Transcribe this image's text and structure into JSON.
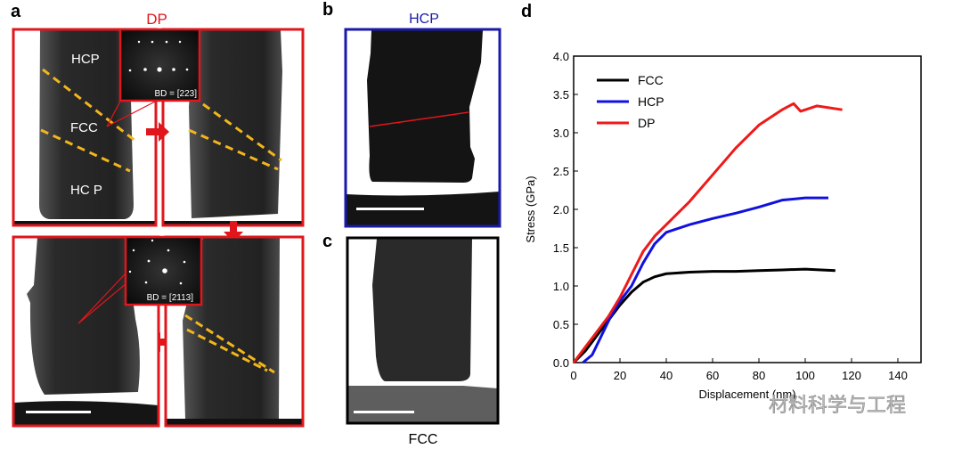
{
  "panel_a": {
    "letter": "a",
    "title": "DP",
    "labels": {
      "hcp_top": "HCP",
      "fcc": "FCC",
      "hcp_bottom": "HC P"
    },
    "inset_top_caption": "BD = [223]",
    "inset_bottom_caption": "BD = [2113]",
    "frame_color": "#e0161c",
    "twin_line_color": "#f2b61c"
  },
  "panel_b": {
    "letter": "b",
    "title": "HCP",
    "frame_color": "#1a1aa8"
  },
  "panel_c": {
    "letter": "c",
    "caption": "FCC",
    "frame_color": "#000000"
  },
  "panel_d": {
    "letter": "d"
  },
  "watermark": "材料科学与工程",
  "chart_data": {
    "type": "line",
    "title": "",
    "xlabel": "Displacement (nm)",
    "ylabel": "Stress (GPa)",
    "xlim": [
      0,
      150
    ],
    "ylim": [
      0,
      4.0
    ],
    "xticks": [
      0,
      20,
      40,
      60,
      80,
      100,
      120,
      140
    ],
    "yticks": [
      "0.0",
      "0.5",
      "1.0",
      "1.5",
      "2.0",
      "2.5",
      "3.0",
      "3.5",
      "4.0"
    ],
    "grid": false,
    "legend_position": "top-left",
    "series": [
      {
        "name": "FCC",
        "color": "#000000",
        "x": [
          0,
          5,
          10,
          15,
          20,
          25,
          30,
          35,
          40,
          50,
          60,
          70,
          80,
          90,
          100,
          113
        ],
        "y": [
          0,
          0.15,
          0.35,
          0.55,
          0.75,
          0.92,
          1.05,
          1.12,
          1.16,
          1.18,
          1.19,
          1.19,
          1.2,
          1.21,
          1.22,
          1.2
        ]
      },
      {
        "name": "HCP",
        "color": "#1010e0",
        "x": [
          4,
          8,
          12,
          16,
          20,
          25,
          30,
          35,
          40,
          50,
          60,
          70,
          80,
          90,
          100,
          110
        ],
        "y": [
          0,
          0.1,
          0.35,
          0.6,
          0.8,
          1.0,
          1.3,
          1.55,
          1.7,
          1.8,
          1.88,
          1.95,
          2.03,
          2.12,
          2.15,
          2.15
        ]
      },
      {
        "name": "DP",
        "color": "#ee1a1a",
        "x": [
          0,
          5,
          10,
          15,
          20,
          25,
          30,
          35,
          40,
          50,
          60,
          70,
          80,
          90,
          95,
          98,
          105,
          116
        ],
        "y": [
          0,
          0.2,
          0.4,
          0.6,
          0.85,
          1.15,
          1.45,
          1.65,
          1.8,
          2.1,
          2.45,
          2.8,
          3.1,
          3.3,
          3.38,
          3.28,
          3.35,
          3.3
        ]
      }
    ]
  }
}
